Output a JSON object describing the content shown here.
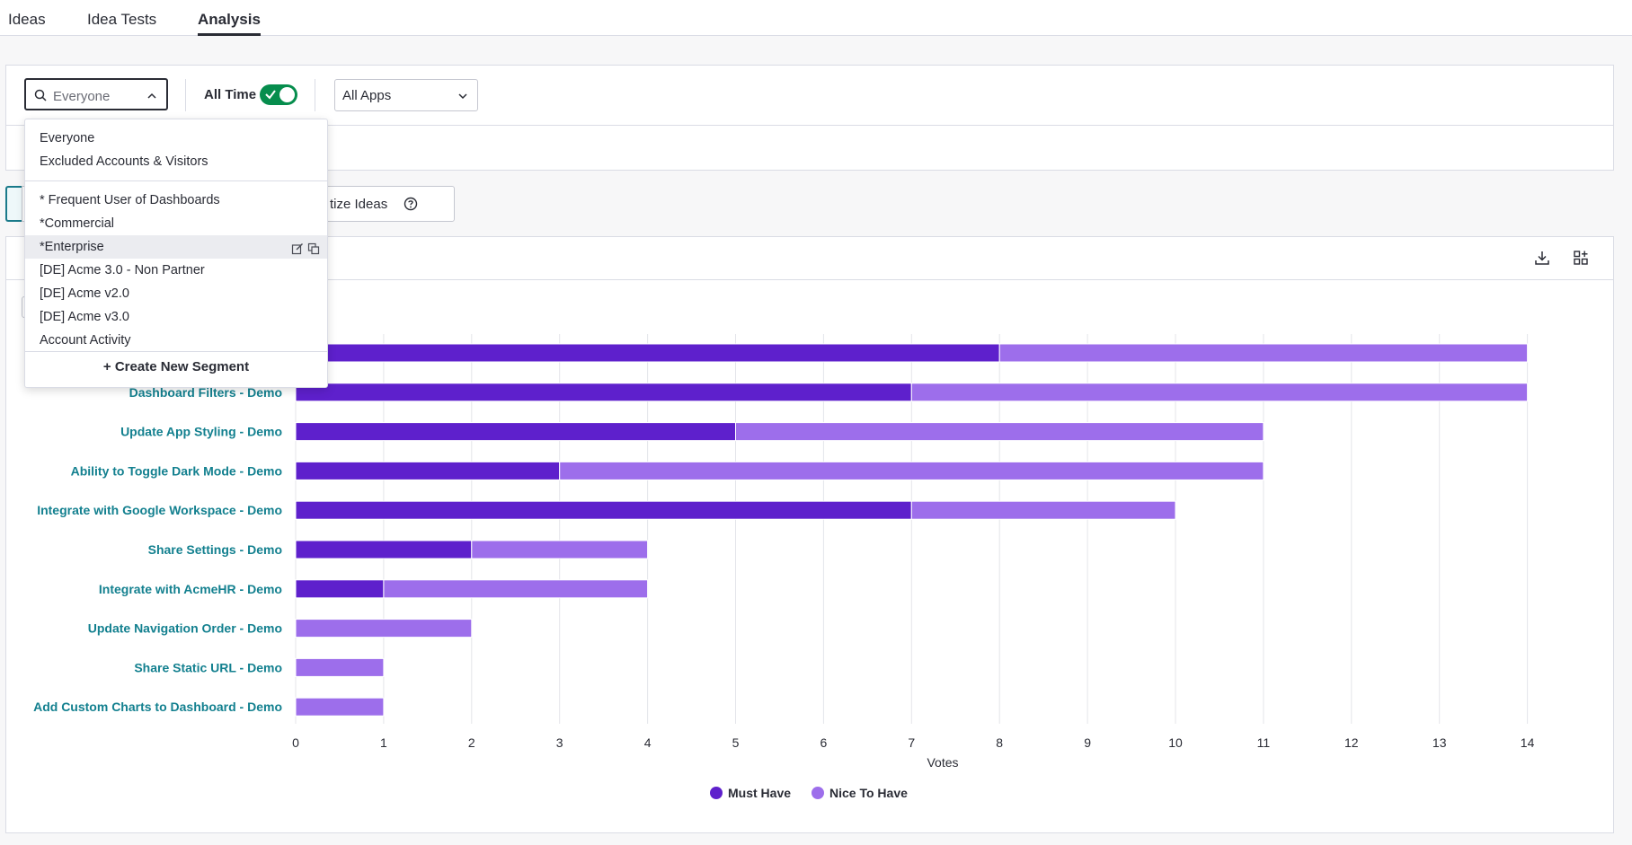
{
  "tabs": [
    {
      "label": "Ideas",
      "active": false
    },
    {
      "label": "Idea Tests",
      "active": false
    },
    {
      "label": "Analysis",
      "active": true
    }
  ],
  "filters": {
    "segment": {
      "placeholder": "Everyone",
      "icon": "search-icon",
      "expanded": true
    },
    "time": {
      "label": "All Time",
      "on": true
    },
    "apps": {
      "value": "All Apps"
    }
  },
  "segment_dropdown": {
    "top_options": [
      "Everyone",
      "Excluded Accounts & Visitors"
    ],
    "segments": [
      "* Frequent User of Dashboards",
      "*Commercial",
      "*Enterprise",
      "[DE] Acme 3.0 - Non Partner",
      "[DE] Acme v2.0",
      "[DE] Acme v3.0",
      "Account Activity"
    ],
    "highlighted": "*Enterprise",
    "create_label": "+ Create New Segment"
  },
  "view_buttons": {
    "partial_label": "tize Ideas",
    "help_icon": "help-circle-icon"
  },
  "chart_header": {
    "download_icon": "download-icon",
    "add_widget_icon": "add-widget-icon"
  },
  "colors": {
    "must_have": "#5e20cc",
    "nice_to_have": "#9d6eeb",
    "category_label": "#13808f"
  },
  "chart_data": {
    "type": "bar",
    "orientation": "horizontal",
    "stacked": true,
    "categories": [
      "",
      "Dashboard Filters - Demo",
      "Update App Styling - Demo",
      "Ability to Toggle Dark Mode - Demo",
      "Integrate with Google Workspace - Demo",
      "Share Settings - Demo",
      "Integrate with AcmeHR - Demo",
      "Update Navigation Order - Demo",
      "Share Static URL - Demo",
      "Add Custom Charts to Dashboard - Demo"
    ],
    "series": [
      {
        "name": "Must Have",
        "values": [
          8,
          7,
          5,
          3,
          7,
          2,
          1,
          0,
          0,
          0
        ]
      },
      {
        "name": "Nice To Have",
        "values": [
          6,
          7,
          6,
          8,
          3,
          2,
          3,
          2,
          1,
          1
        ]
      }
    ],
    "xlabel": "Votes",
    "xlim": [
      0,
      14
    ],
    "xticks": [
      "0",
      "1",
      "2",
      "3",
      "4",
      "5",
      "6",
      "7",
      "8",
      "9",
      "10",
      "11",
      "12",
      "13",
      "14"
    ],
    "grid": true,
    "legend": "bottom"
  }
}
